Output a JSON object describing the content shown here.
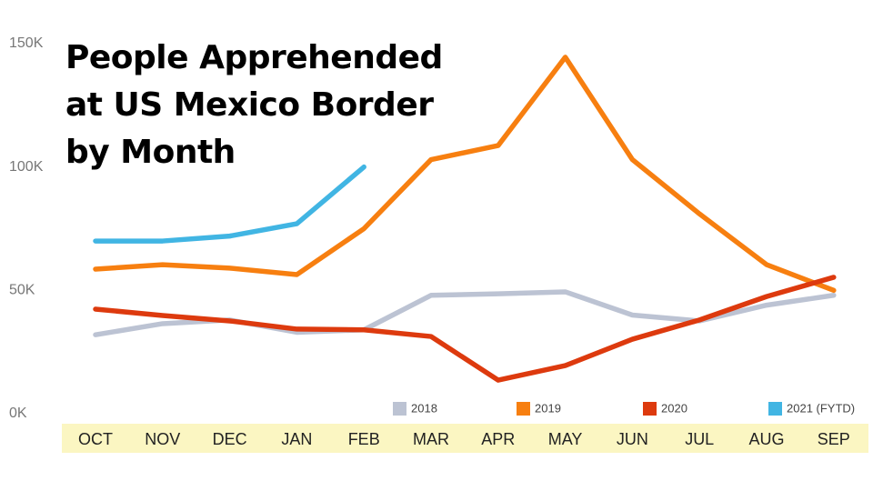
{
  "chart_data": {
    "type": "line",
    "title": "People Apprehended at US Mexico Border by Month",
    "categories": [
      "OCT",
      "NOV",
      "DEC",
      "JAN",
      "FEB",
      "MAR",
      "APR",
      "MAY",
      "JUN",
      "JUL",
      "AUG",
      "SEP"
    ],
    "series": [
      {
        "name": "2018",
        "color": "#bcc3d3",
        "values": [
          32,
          36.5,
          38,
          33,
          34,
          48,
          48.6,
          49.4,
          40,
          37.6,
          44,
          48
        ]
      },
      {
        "name": "2019",
        "color": "#f77f10",
        "values": [
          58.6,
          60.4,
          59,
          56.4,
          75,
          103,
          108.7,
          144.5,
          103,
          81,
          60.4,
          50
        ]
      },
      {
        "name": "2020",
        "color": "#dd3a0e",
        "values": [
          42.4,
          39.8,
          37.6,
          34.3,
          34,
          31.3,
          13.6,
          19.5,
          30.2,
          38,
          47.5,
          55.3
        ]
      },
      {
        "name": "2021 (FYTD)",
        "color": "#41b5e3",
        "values": [
          70,
          70,
          72,
          77,
          100,
          null,
          null,
          null,
          null,
          null,
          null,
          null
        ]
      }
    ],
    "ylim": [
      0,
      150
    ],
    "yticks": [
      {
        "value": 0,
        "label": "0K"
      },
      {
        "value": 50,
        "label": "50K"
      },
      {
        "value": 100,
        "label": "100K"
      },
      {
        "value": 150,
        "label": "150K"
      }
    ],
    "grid": false,
    "legend": "bottom"
  }
}
